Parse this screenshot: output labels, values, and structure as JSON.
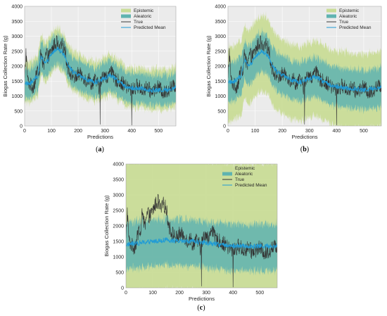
{
  "figure": {
    "colors": {
      "epistemic": "#c9dc97",
      "aleatoric": "#5fb3b0",
      "true": "#333333",
      "predicted_mean": "#1f9bd6",
      "axes_bg": "#ebebeb",
      "grid": "#ffffff"
    }
  },
  "chart_data": [
    {
      "panel_label": "(a)",
      "type": "line",
      "xlabel": "Predictions",
      "ylabel": "Biogas Collection Rate (g)",
      "xlim": [
        0,
        565
      ],
      "ylim": [
        0,
        4000
      ],
      "xticks": [
        "0",
        "100",
        "200",
        "300",
        "400",
        "500"
      ],
      "yticks": [
        "0",
        "500",
        "1000",
        "1500",
        "2000",
        "2500",
        "3000",
        "3500",
        "4000"
      ],
      "grid": true,
      "legend_position": "top-right",
      "series": [
        {
          "name": "Epistemic",
          "kind": "band",
          "lower_offset": -650,
          "upper_offset": 700
        },
        {
          "name": "Aleatoric",
          "kind": "band",
          "lower_offset": -500,
          "upper_offset": 500
        },
        {
          "name": "True",
          "kind": "line"
        },
        {
          "name": "Predicted Mean",
          "kind": "line"
        }
      ],
      "true_profile": {
        "x": [
          0,
          5,
          12,
          20,
          30,
          40,
          48,
          55,
          62,
          70,
          80,
          90,
          100,
          110,
          120,
          130,
          140,
          150,
          160,
          170,
          180,
          190,
          200,
          210,
          220,
          230,
          240,
          250,
          260,
          270,
          278,
          285,
          290,
          300,
          310,
          320,
          330,
          340,
          350,
          360,
          370,
          380,
          390,
          400,
          410,
          420,
          430,
          440,
          450,
          460,
          470,
          480,
          490,
          500,
          510,
          520,
          530,
          540,
          550,
          565
        ],
        "y": [
          1500,
          2500,
          1500,
          1400,
          1300,
          1500,
          1900,
          1700,
          2600,
          1900,
          2400,
          2300,
          2500,
          2700,
          2800,
          2500,
          2700,
          2600,
          2000,
          1800,
          1700,
          1600,
          1750,
          1700,
          1650,
          1500,
          1600,
          1400,
          1550,
          1450,
          1300,
          1500,
          1600,
          1800,
          1500,
          2000,
          1650,
          1550,
          1500,
          1450,
          1400,
          1300,
          1250,
          1200,
          1250,
          1350,
          1300,
          1200,
          1250,
          1300,
          1150,
          1200,
          1250,
          1300,
          1200,
          1100,
          1150,
          1250,
          1300,
          1350
        ]
      },
      "mean_profile": {
        "x": [
          0,
          20,
          50,
          60,
          80,
          100,
          120,
          140,
          160,
          180,
          200,
          230,
          260,
          290,
          320,
          350,
          380,
          410,
          440,
          470,
          500,
          530,
          565
        ],
        "y": [
          1450,
          1400,
          1700,
          2300,
          2100,
          2400,
          2600,
          2500,
          2100,
          1800,
          1700,
          1550,
          1450,
          1550,
          1700,
          1500,
          1300,
          1250,
          1250,
          1200,
          1200,
          1200,
          1300
        ]
      },
      "dips": [
        {
          "x": 282,
          "y": 50
        },
        {
          "x": 400,
          "y": 20
        }
      ]
    },
    {
      "panel_label": "(b)",
      "type": "line",
      "xlabel": "Predictions",
      "ylabel": "Biogas Collection Rate (g)",
      "xlim": [
        0,
        565
      ],
      "ylim": [
        0,
        4000
      ],
      "xticks": [
        "0",
        "100",
        "200",
        "300",
        "400",
        "500"
      ],
      "yticks": [
        "0",
        "500",
        "1000",
        "1500",
        "2000",
        "2500",
        "3000",
        "3500",
        "4000"
      ],
      "grid": true,
      "legend_position": "top-right",
      "series": [
        {
          "name": "Epistemic",
          "kind": "band",
          "lower_offset": -1300,
          "upper_offset": 1200
        },
        {
          "name": "Aleatoric",
          "kind": "band",
          "lower_offset": -650,
          "upper_offset": 650
        },
        {
          "name": "True",
          "kind": "line"
        },
        {
          "name": "Predicted Mean",
          "kind": "line"
        }
      ],
      "true_profile": {
        "x": [
          0,
          5,
          12,
          20,
          30,
          40,
          48,
          55,
          62,
          70,
          80,
          90,
          100,
          110,
          120,
          130,
          140,
          150,
          160,
          170,
          180,
          190,
          200,
          210,
          220,
          230,
          240,
          250,
          260,
          270,
          278,
          285,
          290,
          300,
          310,
          320,
          330,
          340,
          350,
          360,
          370,
          380,
          390,
          400,
          410,
          420,
          430,
          440,
          450,
          460,
          470,
          480,
          490,
          500,
          510,
          520,
          530,
          540,
          550,
          565
        ],
        "y": [
          1500,
          2500,
          1500,
          1400,
          1300,
          1500,
          1900,
          1700,
          2600,
          1900,
          2400,
          2300,
          2500,
          2700,
          2800,
          2500,
          2700,
          2600,
          2000,
          1800,
          1700,
          1600,
          1750,
          1700,
          1650,
          1500,
          1600,
          1400,
          1550,
          1450,
          1300,
          1500,
          1600,
          1800,
          1500,
          2000,
          1650,
          1550,
          1500,
          1450,
          1400,
          1300,
          1250,
          1200,
          1250,
          1350,
          1300,
          1200,
          1250,
          1300,
          1150,
          1200,
          1250,
          1300,
          1200,
          1100,
          1150,
          1250,
          1300,
          1350
        ]
      },
      "mean_profile": {
        "x": [
          0,
          20,
          50,
          60,
          80,
          100,
          120,
          140,
          160,
          180,
          200,
          230,
          260,
          290,
          320,
          350,
          380,
          410,
          440,
          470,
          500,
          530,
          565
        ],
        "y": [
          1500,
          1450,
          1700,
          2200,
          2000,
          2300,
          2500,
          2450,
          2100,
          1800,
          1700,
          1550,
          1450,
          1550,
          1650,
          1500,
          1350,
          1300,
          1250,
          1250,
          1200,
          1250,
          1300
        ]
      },
      "dips": [
        {
          "x": 282,
          "y": 50
        },
        {
          "x": 400,
          "y": 20
        }
      ]
    },
    {
      "panel_label": "(c)",
      "type": "line",
      "xlabel": "Predictions",
      "ylabel": "Biogas Collection Rate (g)",
      "xlim": [
        0,
        565
      ],
      "ylim": [
        0,
        4000
      ],
      "xticks": [
        "0",
        "100",
        "200",
        "300",
        "400",
        "500"
      ],
      "yticks": [
        "0",
        "500",
        "1000",
        "1500",
        "2000",
        "2500",
        "3000",
        "3500",
        "4000"
      ],
      "grid": true,
      "legend_position": "top-right",
      "series": [
        {
          "name": "Epistemic",
          "kind": "band",
          "lower_offset": -1600,
          "upper_offset": 2700
        },
        {
          "name": "Aleatoric",
          "kind": "band",
          "lower_offset": -800,
          "upper_offset": 700
        },
        {
          "name": "True",
          "kind": "line"
        },
        {
          "name": "Predicted Mean",
          "kind": "line"
        }
      ],
      "true_profile": {
        "x": [
          0,
          5,
          12,
          20,
          30,
          40,
          48,
          55,
          62,
          70,
          80,
          90,
          100,
          110,
          120,
          130,
          140,
          150,
          160,
          170,
          180,
          190,
          200,
          210,
          220,
          230,
          240,
          250,
          260,
          270,
          278,
          285,
          290,
          300,
          310,
          320,
          330,
          340,
          350,
          360,
          370,
          380,
          390,
          400,
          410,
          420,
          430,
          440,
          450,
          460,
          470,
          480,
          490,
          500,
          510,
          520,
          530,
          540,
          550,
          565
        ],
        "y": [
          1500,
          2500,
          1500,
          1400,
          1300,
          1500,
          1900,
          1700,
          2600,
          1900,
          2400,
          2300,
          2500,
          2700,
          2800,
          2500,
          2700,
          2600,
          2000,
          1800,
          1700,
          1600,
          1750,
          1700,
          1650,
          1500,
          1600,
          1400,
          1550,
          1450,
          1300,
          1500,
          1600,
          1800,
          1500,
          2000,
          1650,
          1550,
          1500,
          1450,
          1400,
          1300,
          1250,
          1200,
          1250,
          1350,
          1300,
          1200,
          1250,
          1300,
          1150,
          1200,
          1250,
          1300,
          1200,
          1100,
          1150,
          1250,
          1300,
          1350
        ]
      },
      "mean_profile": {
        "x": [
          0,
          50,
          100,
          150,
          200,
          250,
          300,
          350,
          400,
          450,
          500,
          565
        ],
        "y": [
          1400,
          1450,
          1500,
          1550,
          1500,
          1500,
          1450,
          1400,
          1350,
          1350,
          1350,
          1350
        ]
      },
      "dips": [
        {
          "x": 282,
          "y": 50
        },
        {
          "x": 400,
          "y": 20
        }
      ]
    }
  ]
}
